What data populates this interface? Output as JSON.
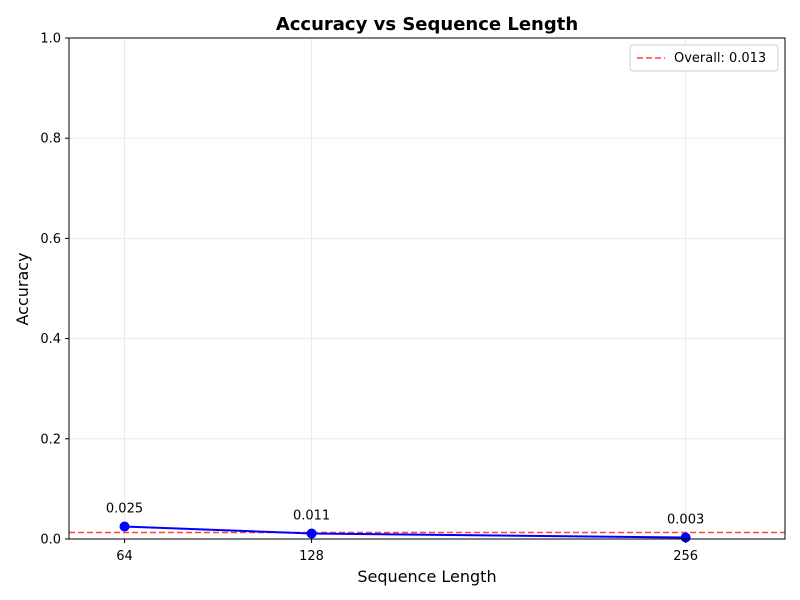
{
  "chart_data": {
    "type": "line",
    "title": "Accuracy vs Sequence Length",
    "xlabel": "Sequence Length",
    "ylabel": "Accuracy",
    "x": [
      64,
      128,
      256
    ],
    "xlim": [
      45,
      290
    ],
    "ylim": [
      0,
      1
    ],
    "xticks": [
      64,
      128,
      256
    ],
    "yticks": [
      0.0,
      0.2,
      0.4,
      0.6,
      0.8,
      1.0
    ],
    "ytick_labels": [
      "0.0",
      "0.2",
      "0.4",
      "0.6",
      "0.8",
      "1.0"
    ],
    "grid": true,
    "series": [
      {
        "name": "Accuracy",
        "values": [
          0.025,
          0.011,
          0.003
        ],
        "labels": [
          "0.025",
          "0.011",
          "0.003"
        ],
        "color": "#0000ff",
        "marker": "circle"
      }
    ],
    "reference_line": {
      "label": "Overall: 0.013",
      "value": 0.013,
      "color": "#ff0000",
      "style": "dashed"
    },
    "legend_position": "top-right"
  }
}
